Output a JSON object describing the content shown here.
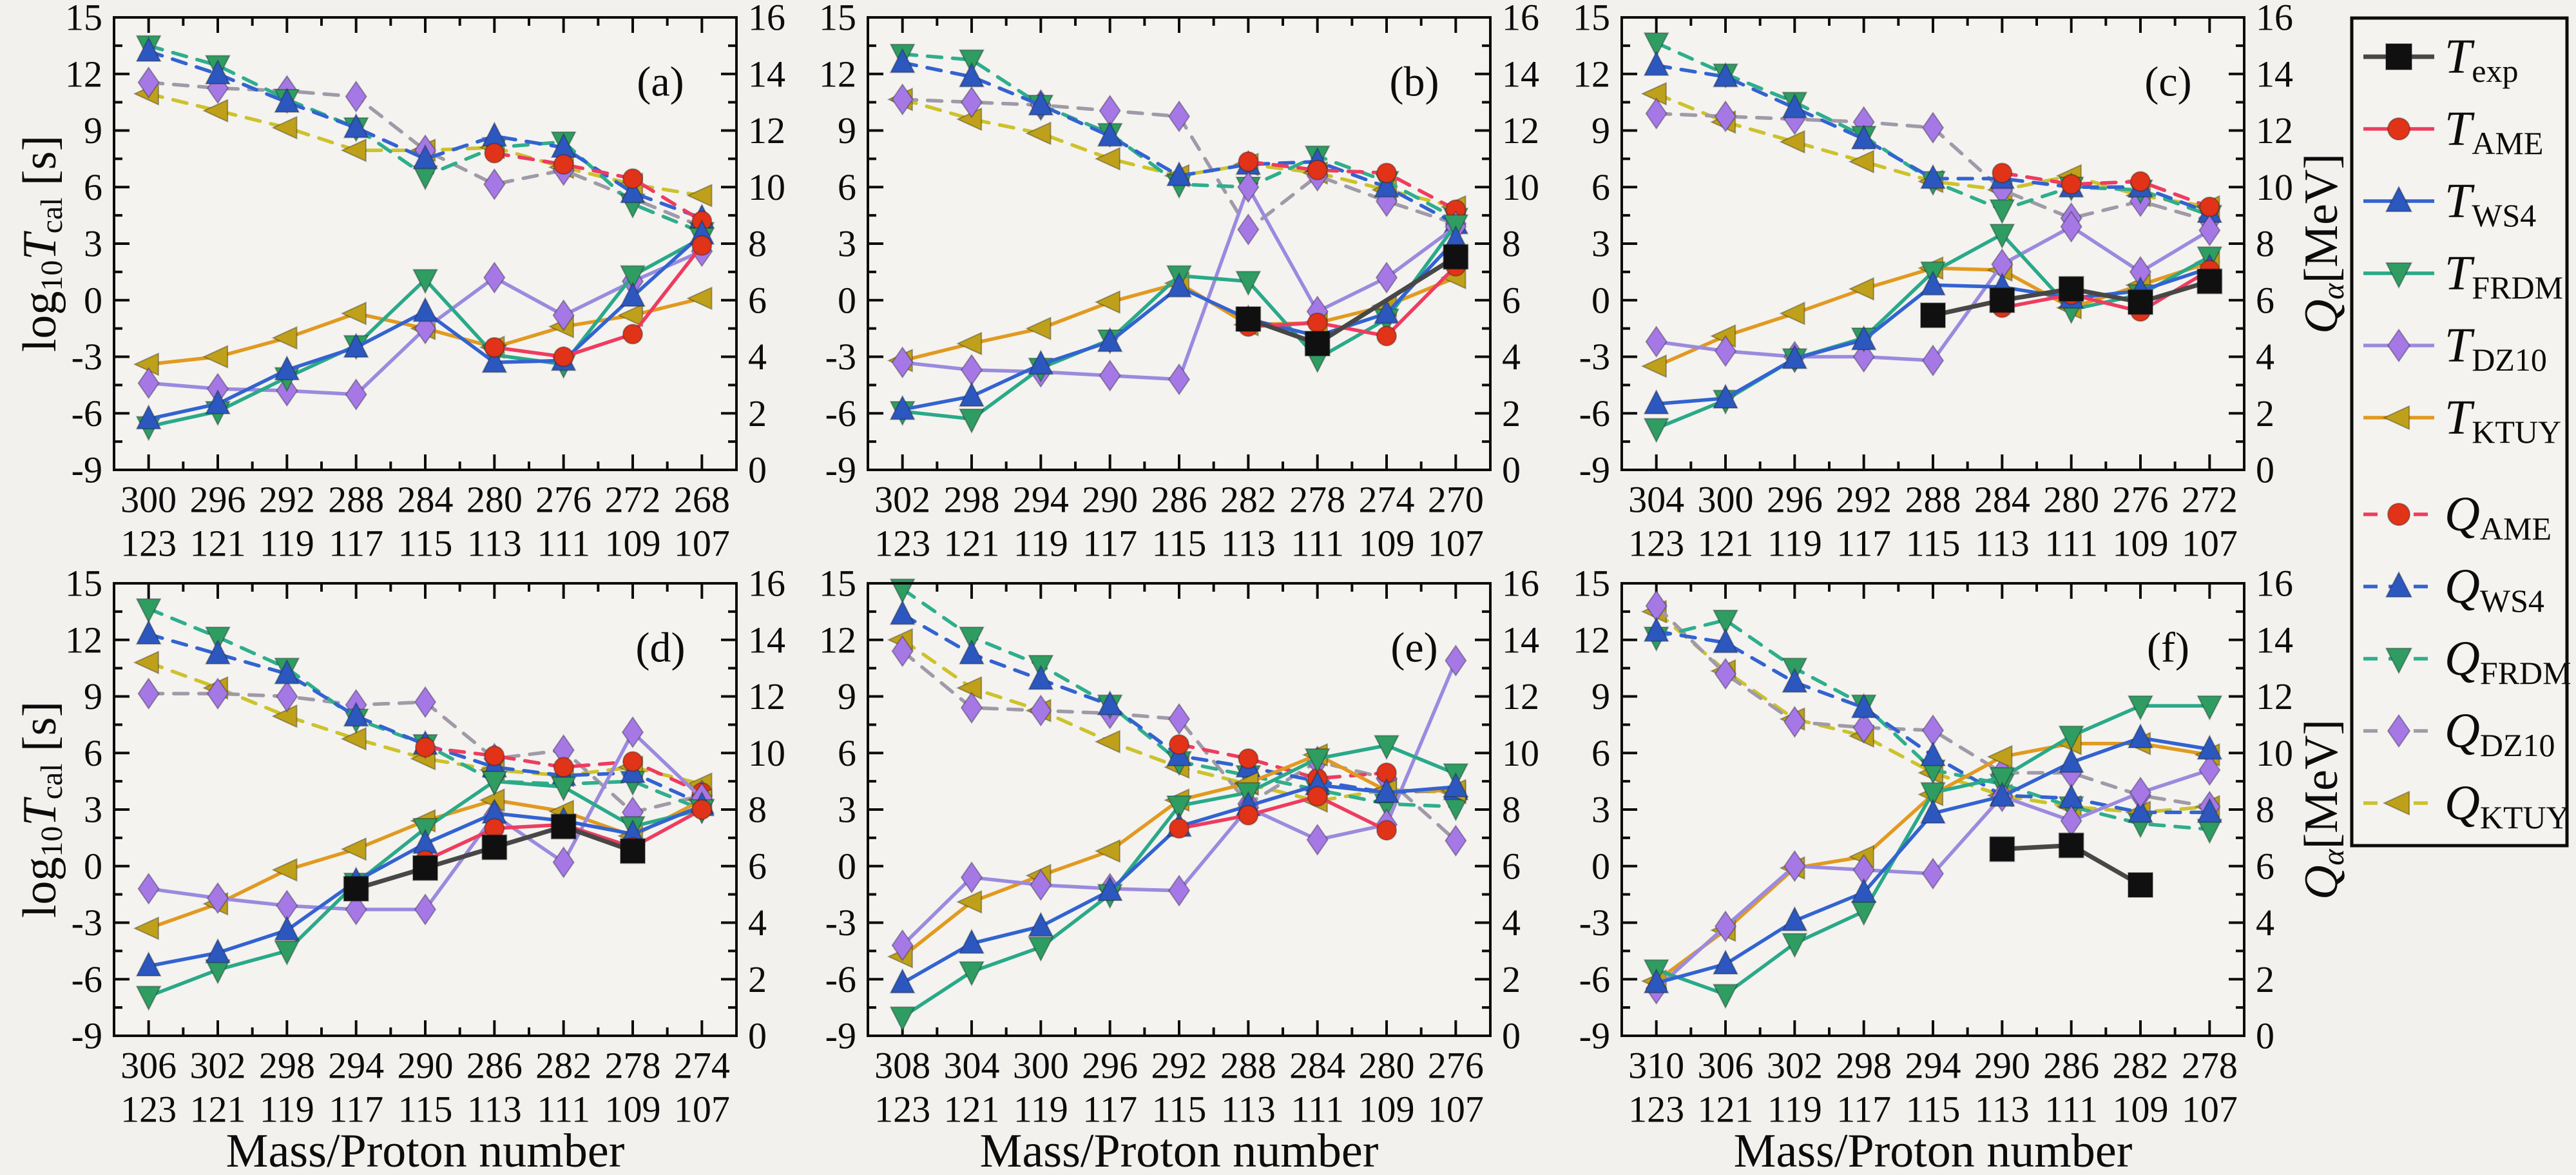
{
  "figure": {
    "x_axis_title": "Mass/Proton number",
    "left_axis": {
      "label": "log10Tcal [s]",
      "min": -9,
      "max": 15,
      "major_step": 3,
      "minor_step": 1.5
    },
    "right_axis": {
      "label": "Qa [MeV]",
      "min": 0,
      "max": 16,
      "major_step": 2,
      "minor_step": 1
    },
    "left_axis_label_segments": [
      {
        "t": "log"
      },
      {
        "t": "10",
        "sub": true
      },
      {
        "t": "T",
        "it": true
      },
      {
        "t": "cal",
        "sub": true
      },
      {
        "t": " [s]"
      }
    ],
    "right_axis_label_segments": [
      {
        "t": "Q",
        "it": true
      },
      {
        "t": "α",
        "sub": true,
        "it": true
      },
      {
        "t": "[MeV]"
      }
    ],
    "background": "#f2f1ee",
    "plot_background": "#f4f3f0",
    "axis_color": "#0c0c0c"
  },
  "series_styles": [
    {
      "id": "T_exp",
      "label": {
        "main": "T",
        "sub": "exp"
      },
      "axis": "left",
      "dash": false,
      "marker": "square",
      "marker_color": "#101010",
      "line_color": "#474747"
    },
    {
      "id": "T_AME",
      "label": {
        "main": "T",
        "sub": "AME"
      },
      "axis": "left",
      "dash": false,
      "marker": "circle",
      "marker_color": "#e03318",
      "line_color": "#ee3c60"
    },
    {
      "id": "T_WS4",
      "label": {
        "main": "T",
        "sub": "WS4"
      },
      "axis": "left",
      "dash": false,
      "marker": "triangle-up",
      "marker_color": "#2c57be",
      "line_color": "#3363d0"
    },
    {
      "id": "T_FRDM",
      "label": {
        "main": "T",
        "sub": "FRDM"
      },
      "axis": "left",
      "dash": false,
      "marker": "triangle-down",
      "marker_color": "#2f9c62",
      "line_color": "#2aa988"
    },
    {
      "id": "T_DZ10",
      "label": {
        "main": "T",
        "sub": "DZ10"
      },
      "axis": "left",
      "dash": false,
      "marker": "diamond",
      "marker_color": "#a578e6",
      "line_color": "#9b8ade"
    },
    {
      "id": "T_KTUY",
      "label": {
        "main": "T",
        "sub": "KTUY"
      },
      "axis": "left",
      "dash": false,
      "marker": "triangle-left",
      "marker_color": "#bfa01a",
      "line_color": "#e19a20"
    },
    {
      "id": "Q_AME",
      "label": {
        "main": "Q",
        "sub": "AME"
      },
      "axis": "right",
      "dash": true,
      "marker": "circle",
      "marker_color": "#e03318",
      "line_color": "#ee3c60"
    },
    {
      "id": "Q_WS4",
      "label": {
        "main": "Q",
        "sub": "WS4"
      },
      "axis": "right",
      "dash": true,
      "marker": "triangle-up",
      "marker_color": "#2c57be",
      "line_color": "#3363d0"
    },
    {
      "id": "Q_FRDM",
      "label": {
        "main": "Q",
        "sub": "FRDM"
      },
      "axis": "right",
      "dash": true,
      "marker": "triangle-down",
      "marker_color": "#2f9c62",
      "line_color": "#2fae8c"
    },
    {
      "id": "Q_DZ10",
      "label": {
        "main": "Q",
        "sub": "DZ10"
      },
      "axis": "right",
      "dash": true,
      "marker": "diamond",
      "marker_color": "#a578e6",
      "line_color": "#a09aa8"
    },
    {
      "id": "Q_KTUY",
      "label": {
        "main": "Q",
        "sub": "KTUY"
      },
      "axis": "right",
      "dash": true,
      "marker": "triangle-left",
      "marker_color": "#bfa01a",
      "line_color": "#cdc22b"
    }
  ],
  "chart_data": [
    {
      "type": "line",
      "label": "(a)",
      "masses": [
        300,
        296,
        292,
        288,
        284,
        280,
        276,
        272,
        268
      ],
      "protons": [
        123,
        121,
        119,
        117,
        115,
        113,
        111,
        109,
        107
      ],
      "series": {
        "T_exp": [
          null,
          null,
          null,
          null,
          null,
          null,
          null,
          null,
          null
        ],
        "T_AME": [
          null,
          null,
          null,
          null,
          null,
          -2.5,
          -3.0,
          -1.8,
          2.9
        ],
        "T_WS4": [
          -6.3,
          -5.5,
          -3.7,
          -2.5,
          -0.6,
          -3.3,
          -3.2,
          0.2,
          3.5
        ],
        "T_FRDM": [
          -6.7,
          -5.9,
          -4.1,
          -2.4,
          1.1,
          -2.9,
          -3.4,
          1.3,
          3.3
        ],
        "T_DZ10": [
          -4.4,
          -4.7,
          -4.8,
          -5.0,
          -1.5,
          1.2,
          -0.8,
          1.0,
          2.6
        ],
        "T_KTUY": [
          -3.4,
          -3.0,
          -2.0,
          -0.7,
          -1.5,
          -2.5,
          -1.4,
          -0.8,
          0.1
        ],
        "Q_AME": [
          null,
          null,
          null,
          null,
          null,
          11.2,
          10.8,
          10.3,
          8.8
        ],
        "Q_WS4": [
          14.8,
          14.0,
          13.0,
          12.1,
          11.0,
          11.8,
          11.4,
          9.8,
          8.9
        ],
        "Q_FRDM": [
          15.0,
          14.3,
          13.1,
          12.1,
          10.4,
          11.4,
          11.6,
          9.4,
          8.4
        ],
        "Q_DZ10": [
          13.7,
          13.5,
          13.4,
          13.2,
          11.3,
          10.1,
          10.6,
          9.6,
          8.6
        ],
        "Q_KTUY": [
          13.3,
          12.7,
          12.1,
          11.3,
          11.3,
          11.4,
          10.7,
          10.1,
          9.7
        ]
      }
    },
    {
      "type": "line",
      "label": "(b)",
      "masses": [
        302,
        298,
        294,
        290,
        286,
        282,
        278,
        274,
        270
      ],
      "protons": [
        123,
        121,
        119,
        117,
        115,
        113,
        111,
        109,
        107
      ],
      "series": {
        "T_exp": [
          null,
          null,
          null,
          null,
          null,
          -1.0,
          -2.3,
          null,
          2.3
        ],
        "T_AME": [
          null,
          null,
          null,
          null,
          null,
          -1.4,
          -1.2,
          -1.9,
          1.8
        ],
        "T_WS4": [
          -5.8,
          -5.1,
          -3.4,
          -2.2,
          0.7,
          -1.0,
          -1.9,
          -0.7,
          3.2
        ],
        "T_FRDM": [
          -5.9,
          -6.3,
          -3.6,
          -2.1,
          1.3,
          1.0,
          -3.1,
          -1.0,
          4.0
        ],
        "T_DZ10": [
          -3.3,
          -3.7,
          -3.8,
          -4.0,
          -4.2,
          6.0,
          -0.6,
          1.2,
          3.9
        ],
        "T_KTUY": [
          -3.2,
          -2.3,
          -1.5,
          -0.1,
          0.9,
          -1.3,
          -1.2,
          -0.3,
          1.2
        ],
        "Q_AME": [
          null,
          null,
          null,
          null,
          null,
          10.9,
          10.6,
          10.5,
          9.2
        ],
        "Q_WS4": [
          14.4,
          13.9,
          12.9,
          11.8,
          10.4,
          10.8,
          10.9,
          10.0,
          8.7
        ],
        "Q_FRDM": [
          14.7,
          14.5,
          12.9,
          11.9,
          10.1,
          10.0,
          11.1,
          10.2,
          8.9
        ],
        "Q_DZ10": [
          13.1,
          13.0,
          12.9,
          12.7,
          12.5,
          8.5,
          10.4,
          9.5,
          8.7
        ],
        "Q_KTUY": [
          13.1,
          12.4,
          11.9,
          11.0,
          10.4,
          10.8,
          10.5,
          9.9,
          9.3
        ]
      }
    },
    {
      "type": "line",
      "label": "(c)",
      "masses": [
        304,
        300,
        296,
        292,
        288,
        284,
        280,
        276,
        272
      ],
      "protons": [
        123,
        121,
        119,
        117,
        115,
        113,
        111,
        109,
        107
      ],
      "series": {
        "T_exp": [
          null,
          null,
          null,
          null,
          -0.8,
          0.0,
          0.6,
          -0.1,
          1.0
        ],
        "T_AME": [
          null,
          null,
          null,
          null,
          null,
          -0.4,
          0.3,
          -0.6,
          1.6
        ],
        "T_WS4": [
          -5.5,
          -5.2,
          -3.1,
          -2.1,
          0.8,
          0.7,
          0.1,
          0.5,
          1.7
        ],
        "T_FRDM": [
          -6.8,
          -5.3,
          -3.1,
          -2.0,
          1.5,
          3.5,
          -0.5,
          0.3,
          2.3
        ],
        "T_DZ10": [
          -2.2,
          -2.7,
          -3.0,
          -3.0,
          -3.2,
          1.9,
          3.9,
          1.5,
          3.7
        ],
        "T_KTUY": [
          -3.5,
          -1.9,
          -0.7,
          0.6,
          1.7,
          1.6,
          -0.4,
          0.8,
          2.0
        ],
        "Q_AME": [
          null,
          null,
          null,
          null,
          null,
          10.5,
          10.1,
          10.2,
          9.3
        ],
        "Q_WS4": [
          14.3,
          13.9,
          12.8,
          11.7,
          10.3,
          10.3,
          10.0,
          10.0,
          9.1
        ],
        "Q_FRDM": [
          15.1,
          14.0,
          13.0,
          11.8,
          10.2,
          9.2,
          10.0,
          9.9,
          9.0
        ],
        "Q_DZ10": [
          12.6,
          12.5,
          12.4,
          12.3,
          12.1,
          9.9,
          8.9,
          9.5,
          8.8
        ],
        "Q_KTUY": [
          13.3,
          12.3,
          11.6,
          10.9,
          10.2,
          9.9,
          10.4,
          9.7,
          9.3
        ]
      }
    },
    {
      "type": "line",
      "label": "(d)",
      "masses": [
        306,
        302,
        298,
        294,
        290,
        286,
        282,
        278,
        274
      ],
      "protons": [
        123,
        121,
        119,
        117,
        115,
        113,
        111,
        109,
        107
      ],
      "series": {
        "T_exp": [
          null,
          null,
          null,
          -1.2,
          -0.1,
          1.0,
          2.1,
          0.8,
          null
        ],
        "T_AME": [
          null,
          null,
          null,
          null,
          0.3,
          2.0,
          2.2,
          1.0,
          3.0
        ],
        "T_WS4": [
          -5.3,
          -4.6,
          -3.4,
          -0.8,
          1.2,
          2.8,
          2.4,
          1.7,
          3.2
        ],
        "T_FRDM": [
          -6.9,
          -5.5,
          -4.5,
          -0.9,
          2.0,
          4.5,
          4.2,
          2.1,
          3.0
        ],
        "T_DZ10": [
          -1.2,
          -1.7,
          -2.1,
          -2.3,
          -2.3,
          2.7,
          0.2,
          7.1,
          3.6
        ],
        "T_KTUY": [
          -3.3,
          -2.0,
          -0.2,
          0.9,
          2.4,
          3.5,
          2.9,
          1.6,
          3.5
        ],
        "Q_AME": [
          null,
          null,
          null,
          null,
          10.2,
          9.9,
          9.5,
          9.7,
          8.6
        ],
        "Q_WS4": [
          14.2,
          13.5,
          12.8,
          11.3,
          10.3,
          9.5,
          9.2,
          9.3,
          8.2
        ],
        "Q_FRDM": [
          15.1,
          14.1,
          13.0,
          11.2,
          10.3,
          9.0,
          8.9,
          9.0,
          8.0
        ],
        "Q_DZ10": [
          12.1,
          12.1,
          12.0,
          11.7,
          11.8,
          9.8,
          10.1,
          7.9,
          8.5
        ],
        "Q_KTUY": [
          13.2,
          12.3,
          11.3,
          10.5,
          9.8,
          9.4,
          9.2,
          9.5,
          8.9
        ]
      }
    },
    {
      "type": "line",
      "label": "(e)",
      "masses": [
        308,
        304,
        300,
        296,
        292,
        288,
        284,
        280,
        276
      ],
      "protons": [
        123,
        121,
        119,
        117,
        115,
        113,
        111,
        109,
        107
      ],
      "series": {
        "T_exp": [
          null,
          null,
          null,
          null,
          null,
          null,
          null,
          null,
          null
        ],
        "T_AME": [
          null,
          null,
          null,
          null,
          2.0,
          2.7,
          3.7,
          1.9,
          null
        ],
        "T_WS4": [
          -6.2,
          -4.1,
          -3.2,
          -1.3,
          2.1,
          3.2,
          4.3,
          3.9,
          4.2
        ],
        "T_FRDM": [
          -8.0,
          -5.6,
          -4.3,
          -1.5,
          3.2,
          3.9,
          5.7,
          6.4,
          4.9
        ],
        "T_DZ10": [
          -4.2,
          -0.6,
          -1.0,
          -1.2,
          -1.3,
          3.1,
          1.4,
          2.2,
          10.9
        ],
        "T_KTUY": [
          -4.8,
          -1.9,
          -0.5,
          0.8,
          3.5,
          4.4,
          5.9,
          4.0,
          4.0
        ],
        "Q_AME": [
          null,
          null,
          null,
          null,
          10.3,
          9.8,
          9.1,
          9.3,
          null
        ],
        "Q_WS4": [
          14.9,
          13.5,
          12.6,
          11.7,
          9.9,
          9.5,
          9.0,
          8.6,
          8.7
        ],
        "Q_FRDM": [
          15.8,
          14.1,
          13.1,
          11.7,
          9.7,
          9.2,
          8.7,
          8.2,
          8.1
        ],
        "Q_DZ10": [
          13.6,
          11.6,
          11.5,
          11.4,
          11.2,
          8.2,
          9.7,
          9.1,
          6.9
        ],
        "Q_KTUY": [
          14.0,
          12.3,
          11.5,
          10.4,
          9.5,
          8.9,
          8.3,
          8.7,
          8.6
        ]
      }
    },
    {
      "type": "line",
      "label": "(f)",
      "masses": [
        310,
        306,
        302,
        298,
        294,
        290,
        286,
        282,
        278
      ],
      "protons": [
        123,
        121,
        119,
        117,
        115,
        113,
        111,
        109,
        107
      ],
      "series": {
        "T_exp": [
          null,
          null,
          null,
          null,
          null,
          0.9,
          1.1,
          -1.0,
          null
        ],
        "T_AME": [
          null,
          null,
          null,
          null,
          null,
          null,
          null,
          null,
          null
        ],
        "T_WS4": [
          -6.2,
          -5.2,
          -2.9,
          -1.4,
          2.8,
          3.7,
          5.5,
          6.8,
          6.2
        ],
        "T_FRDM": [
          -5.5,
          -6.8,
          -4.1,
          -2.4,
          3.9,
          4.7,
          6.9,
          8.5,
          8.5
        ],
        "T_DZ10": [
          -6.5,
          -3.2,
          0.0,
          -0.2,
          -0.4,
          3.7,
          2.4,
          3.9,
          5.1
        ],
        "T_KTUY": [
          -6.1,
          -3.4,
          -0.1,
          0.5,
          3.8,
          5.8,
          6.5,
          6.5,
          5.9
        ],
        "Q_AME": [
          null,
          null,
          null,
          null,
          null,
          null,
          null,
          null,
          null
        ],
        "Q_WS4": [
          14.3,
          13.9,
          12.5,
          11.6,
          9.9,
          8.5,
          8.4,
          7.9,
          7.9
        ],
        "Q_FRDM": [
          14.1,
          14.7,
          13.0,
          11.7,
          9.4,
          8.9,
          8.1,
          7.5,
          7.3
        ],
        "Q_DZ10": [
          15.2,
          12.8,
          11.1,
          10.9,
          10.8,
          9.3,
          9.3,
          8.5,
          8.1
        ],
        "Q_KTUY": [
          15.0,
          12.9,
          11.2,
          10.6,
          9.3,
          8.5,
          8.1,
          7.9,
          8.1
        ]
      }
    }
  ],
  "legend": {
    "t_group": [
      "T_exp",
      "T_AME",
      "T_WS4",
      "T_FRDM",
      "T_DZ10",
      "T_KTUY"
    ],
    "q_group": [
      "Q_AME",
      "Q_WS4",
      "Q_FRDM",
      "Q_DZ10",
      "Q_KTUY"
    ]
  }
}
